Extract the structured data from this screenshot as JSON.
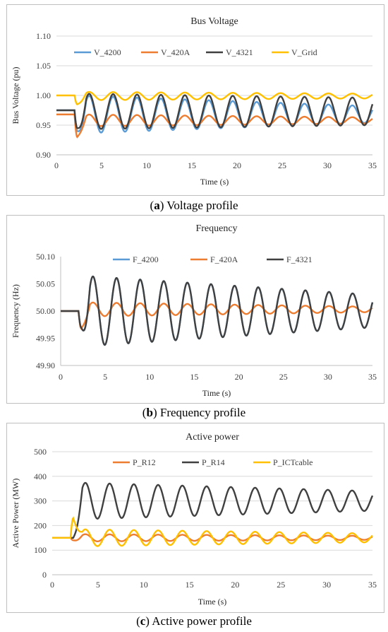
{
  "colors": {
    "blue": "#5B9BD5",
    "orange": "#ED7D31",
    "dark": "#404040",
    "yellow": "#FFC000",
    "grid": "#d9d9d9",
    "axis": "#595959"
  },
  "chart_data": [
    {
      "type": "line",
      "title": "Bus Voltage",
      "xlabel": "Time (s)",
      "ylabel": "Bus Voltage (pu)",
      "xlim": [
        0,
        35
      ],
      "ylim": [
        0.9,
        1.1
      ],
      "xticks": [
        "0",
        "5",
        "10",
        "15",
        "20",
        "25",
        "30",
        "35"
      ],
      "yticks": [
        "0.90",
        "0.95",
        "1.00",
        "1.05",
        "1.10"
      ],
      "grid": true,
      "legend": "top",
      "series": [
        {
          "name": "V_4200",
          "color": "blue",
          "pre": 0.975,
          "dip": 0.94,
          "base": 0.968,
          "amp0": 0.032,
          "amp1": 0.014,
          "period": 2.65,
          "phase": 0.0
        },
        {
          "name": "V_420A",
          "color": "orange",
          "pre": 0.968,
          "dip": 0.93,
          "base": 0.958,
          "amp0": 0.01,
          "amp1": 0.005,
          "period": 2.65,
          "phase": 0.0
        },
        {
          "name": "V_4321",
          "color": "dark",
          "pre": 0.975,
          "dip": 0.945,
          "base": 0.973,
          "amp0": 0.03,
          "amp1": 0.023,
          "period": 2.65,
          "phase": 0.0
        },
        {
          "name": "V_Grid",
          "color": "yellow",
          "pre": 1.0,
          "dip": 0.985,
          "base": 0.999,
          "amp0": 0.007,
          "amp1": 0.004,
          "period": 2.65,
          "phase": 0.0
        }
      ],
      "caption_letter": "a",
      "caption_text": "Voltage profile"
    },
    {
      "type": "line",
      "title": "Frequency",
      "xlabel": "Time (s)",
      "ylabel": "Frequency (Hz)",
      "xlim": [
        0,
        35
      ],
      "ylim": [
        49.9,
        50.1
      ],
      "xticks": [
        "0",
        "5",
        "10",
        "15",
        "20",
        "25",
        "30",
        "35"
      ],
      "yticks": [
        "49.90",
        "49.95",
        "50.00",
        "50.05",
        "50.10"
      ],
      "grid": false,
      "legend": "top",
      "series": [
        {
          "name": "F_4200",
          "color": "blue",
          "pre": 50.0,
          "dip": 49.97,
          "base": 50.0,
          "amp0": 0.065,
          "amp1": 0.03,
          "period": 2.65,
          "phase": 0.0
        },
        {
          "name": "F_420A",
          "color": "orange",
          "pre": 50.0,
          "dip": 49.968,
          "base": 50.003,
          "amp0": 0.013,
          "amp1": 0.005,
          "period": 2.65,
          "phase": 0.0
        },
        {
          "name": "F_4321",
          "color": "dark",
          "pre": 50.0,
          "dip": 49.97,
          "base": 50.0,
          "amp0": 0.065,
          "amp1": 0.03,
          "period": 2.65,
          "phase": 0.0
        }
      ],
      "caption_letter": "b",
      "caption_text": "Frequency profile"
    },
    {
      "type": "line",
      "title": "Active power",
      "xlabel": "Time (s)",
      "ylabel": "Active Power (MW)",
      "xlim": [
        0,
        35
      ],
      "ylim": [
        0,
        500
      ],
      "xticks": [
        "0",
        "5",
        "10",
        "15",
        "20",
        "25",
        "30",
        "35"
      ],
      "yticks": [
        "0",
        "100",
        "200",
        "300",
        "400",
        "500"
      ],
      "grid": true,
      "legend": "top",
      "series": [
        {
          "name": "P_R12",
          "color": "orange",
          "pre": 150,
          "dip": 140,
          "base": 150,
          "amp0": 15,
          "amp1": 8,
          "period": 2.65,
          "phase": 0.0
        },
        {
          "name": "P_R14",
          "color": "dark",
          "pre": 150,
          "dip": 150,
          "base": 300,
          "amp0": 75,
          "amp1": 40,
          "period": 2.65,
          "phase": 0.0
        },
        {
          "name": "P_ICTcable",
          "color": "yellow",
          "pre": 150,
          "dip": 230,
          "base": 150,
          "amp0": 35,
          "amp1": 18,
          "period": 2.65,
          "phase": 0.0
        }
      ],
      "caption_letter": "c",
      "caption_text": "Active power profile"
    }
  ]
}
